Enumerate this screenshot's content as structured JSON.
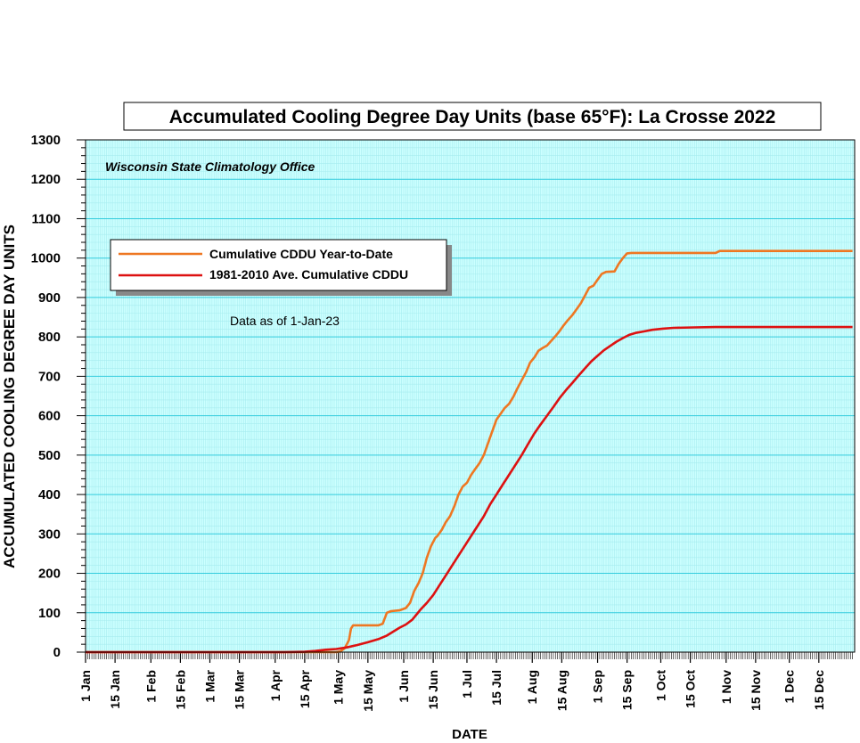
{
  "chart_data": {
    "type": "line",
    "title": "Accumulated Cooling Degree Day Units (base 65°F): La Crosse 2022",
    "subtitle": "Wisconsin State Climatology Office",
    "note": "Data as of 1-Jan-23",
    "xlabel": "DATE",
    "ylabel": "ACCUMULATED COOLING DEGREE DAY UNITS",
    "ylim": [
      0,
      1300
    ],
    "y_ticks": [
      0,
      100,
      200,
      300,
      400,
      500,
      600,
      700,
      800,
      900,
      1000,
      1100,
      1200,
      1300
    ],
    "xlim": [
      "1 Jan",
      "31 Dec"
    ],
    "x_ticks": [
      {
        "day": 1,
        "label": "1 Jan"
      },
      {
        "day": 15,
        "label": "15 Jan"
      },
      {
        "day": 32,
        "label": "1 Feb"
      },
      {
        "day": 46,
        "label": "15 Feb"
      },
      {
        "day": 60,
        "label": "1 Mar"
      },
      {
        "day": 74,
        "label": "15 Mar"
      },
      {
        "day": 91,
        "label": "1 Apr"
      },
      {
        "day": 105,
        "label": "15 Apr"
      },
      {
        "day": 121,
        "label": "1 May"
      },
      {
        "day": 135,
        "label": "15 May"
      },
      {
        "day": 152,
        "label": "1 Jun"
      },
      {
        "day": 166,
        "label": "15 Jun"
      },
      {
        "day": 182,
        "label": "1 Jul"
      },
      {
        "day": 196,
        "label": "15 Jul"
      },
      {
        "day": 213,
        "label": "1 Aug"
      },
      {
        "day": 227,
        "label": "15 Aug"
      },
      {
        "day": 244,
        "label": "1 Sep"
      },
      {
        "day": 258,
        "label": "15 Sep"
      },
      {
        "day": 274,
        "label": "1 Oct"
      },
      {
        "day": 288,
        "label": "15 Oct"
      },
      {
        "day": 305,
        "label": "1 Nov"
      },
      {
        "day": 319,
        "label": "15 Nov"
      },
      {
        "day": 335,
        "label": "1 Dec"
      },
      {
        "day": 349,
        "label": "15 Dec"
      }
    ],
    "grid": true,
    "legend_position": "upper-left",
    "colors": {
      "plot_background": "#ccffff",
      "major_grid": "#33ccdd",
      "minor_grid": "#a6ecef"
    },
    "series": [
      {
        "name": "Cumulative CDDU Year-to-Date",
        "color": "#ee7722",
        "points": [
          [
            1,
            0
          ],
          [
            100,
            0
          ],
          [
            120,
            0
          ],
          [
            122,
            2
          ],
          [
            124,
            10
          ],
          [
            126,
            30
          ],
          [
            127,
            60
          ],
          [
            128,
            68
          ],
          [
            140,
            68
          ],
          [
            142,
            72
          ],
          [
            144,
            100
          ],
          [
            146,
            104
          ],
          [
            150,
            106
          ],
          [
            153,
            112
          ],
          [
            155,
            125
          ],
          [
            157,
            155
          ],
          [
            159,
            175
          ],
          [
            161,
            200
          ],
          [
            163,
            240
          ],
          [
            165,
            270
          ],
          [
            167,
            290
          ],
          [
            168,
            295
          ],
          [
            170,
            310
          ],
          [
            172,
            330
          ],
          [
            174,
            345
          ],
          [
            176,
            370
          ],
          [
            178,
            400
          ],
          [
            180,
            420
          ],
          [
            182,
            430
          ],
          [
            184,
            450
          ],
          [
            186,
            465
          ],
          [
            188,
            480
          ],
          [
            190,
            500
          ],
          [
            192,
            530
          ],
          [
            194,
            560
          ],
          [
            196,
            590
          ],
          [
            198,
            605
          ],
          [
            200,
            620
          ],
          [
            202,
            630
          ],
          [
            204,
            648
          ],
          [
            206,
            670
          ],
          [
            208,
            690
          ],
          [
            210,
            710
          ],
          [
            212,
            735
          ],
          [
            214,
            748
          ],
          [
            216,
            765
          ],
          [
            218,
            772
          ],
          [
            220,
            778
          ],
          [
            222,
            790
          ],
          [
            224,
            802
          ],
          [
            226,
            815
          ],
          [
            228,
            830
          ],
          [
            230,
            843
          ],
          [
            232,
            855
          ],
          [
            234,
            870
          ],
          [
            236,
            885
          ],
          [
            238,
            905
          ],
          [
            240,
            925
          ],
          [
            242,
            930
          ],
          [
            244,
            945
          ],
          [
            246,
            960
          ],
          [
            248,
            965
          ],
          [
            252,
            966
          ],
          [
            254,
            985
          ],
          [
            256,
            1000
          ],
          [
            258,
            1012
          ],
          [
            260,
            1013
          ],
          [
            300,
            1013
          ],
          [
            302,
            1018
          ],
          [
            365,
            1018
          ]
        ]
      },
      {
        "name": "1981-2010 Ave. Cumulative CDDU",
        "color": "#dd1111",
        "points": [
          [
            1,
            0
          ],
          [
            95,
            0
          ],
          [
            105,
            1
          ],
          [
            110,
            3
          ],
          [
            115,
            6
          ],
          [
            120,
            8
          ],
          [
            125,
            12
          ],
          [
            130,
            18
          ],
          [
            135,
            25
          ],
          [
            140,
            33
          ],
          [
            144,
            42
          ],
          [
            147,
            52
          ],
          [
            150,
            62
          ],
          [
            153,
            70
          ],
          [
            156,
            82
          ],
          [
            158,
            95
          ],
          [
            160,
            108
          ],
          [
            163,
            125
          ],
          [
            166,
            145
          ],
          [
            169,
            170
          ],
          [
            172,
            195
          ],
          [
            175,
            220
          ],
          [
            178,
            245
          ],
          [
            181,
            270
          ],
          [
            184,
            295
          ],
          [
            187,
            320
          ],
          [
            190,
            345
          ],
          [
            193,
            375
          ],
          [
            196,
            400
          ],
          [
            199,
            425
          ],
          [
            202,
            450
          ],
          [
            205,
            475
          ],
          [
            208,
            500
          ],
          [
            211,
            528
          ],
          [
            214,
            555
          ],
          [
            217,
            578
          ],
          [
            220,
            600
          ],
          [
            223,
            622
          ],
          [
            226,
            645
          ],
          [
            229,
            665
          ],
          [
            232,
            683
          ],
          [
            235,
            702
          ],
          [
            238,
            720
          ],
          [
            241,
            738
          ],
          [
            244,
            752
          ],
          [
            247,
            766
          ],
          [
            250,
            777
          ],
          [
            253,
            788
          ],
          [
            256,
            797
          ],
          [
            259,
            805
          ],
          [
            262,
            810
          ],
          [
            266,
            814
          ],
          [
            270,
            818
          ],
          [
            275,
            821
          ],
          [
            280,
            823
          ],
          [
            290,
            824
          ],
          [
            300,
            825
          ],
          [
            365,
            825
          ]
        ]
      }
    ]
  }
}
